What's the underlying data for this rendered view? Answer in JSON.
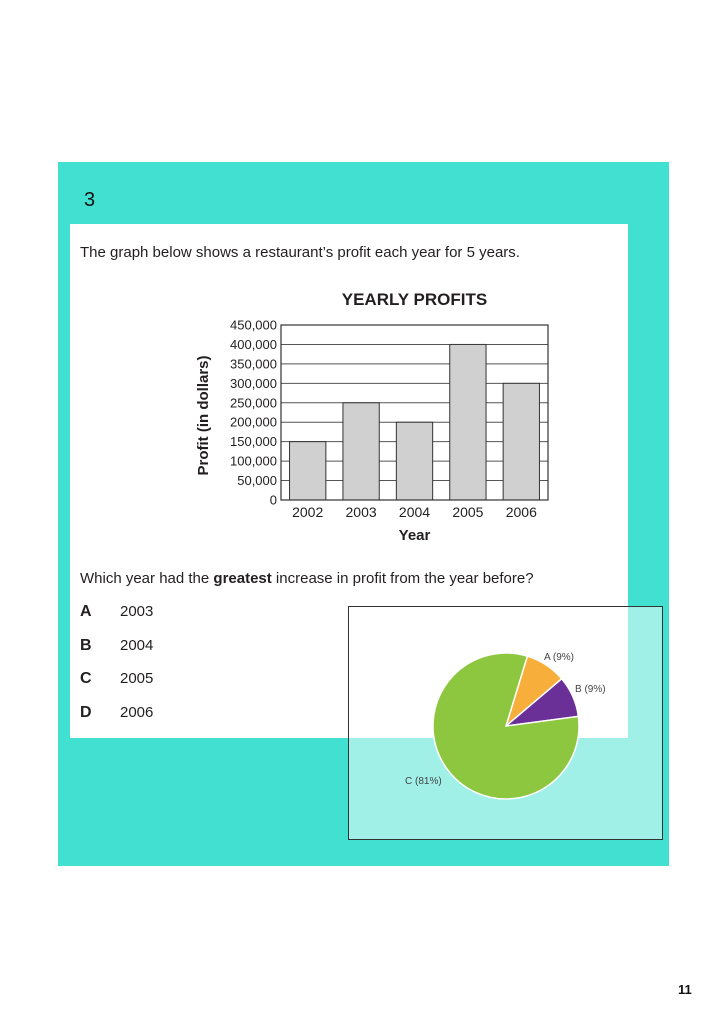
{
  "question_number": "3",
  "prompt": "The graph below shows a restaurant’s profit each year for 5 years.",
  "question": {
    "before": "Which year had the ",
    "emphasis": "greatest",
    "after": " increase in profit from the year before?"
  },
  "options": [
    {
      "letter": "A",
      "text": "2003"
    },
    {
      "letter": "B",
      "text": "2004"
    },
    {
      "letter": "C",
      "text": "2005"
    },
    {
      "letter": "D",
      "text": "2006"
    }
  ],
  "page_number": "11",
  "chart_data": [
    {
      "type": "bar",
      "title": "YEARLY PROFITS",
      "xlabel": "Year",
      "ylabel": "Profit (in dollars)",
      "categories": [
        "2002",
        "2003",
        "2004",
        "2005",
        "2006"
      ],
      "values": [
        150000,
        250000,
        200000,
        400000,
        300000
      ],
      "ylim": [
        0,
        450000
      ],
      "yticks": [
        "0",
        "50,000",
        "100,000",
        "150,000",
        "200,000",
        "250,000",
        "300,000",
        "350,000",
        "400,000",
        "450,000"
      ],
      "grid": true,
      "bar_color": "#d0d0d0"
    },
    {
      "type": "pie",
      "slices": [
        {
          "label": "A (9%)",
          "value": 9,
          "color": "#f7ae3b"
        },
        {
          "label": "B (9%)",
          "value": 9,
          "color": "#6b2f98"
        },
        {
          "label": "C (81%)",
          "value": 81,
          "color": "#8dc63f"
        }
      ]
    }
  ],
  "colors": {
    "panel": "#41e0d1",
    "overlay": "#a3efe8"
  }
}
